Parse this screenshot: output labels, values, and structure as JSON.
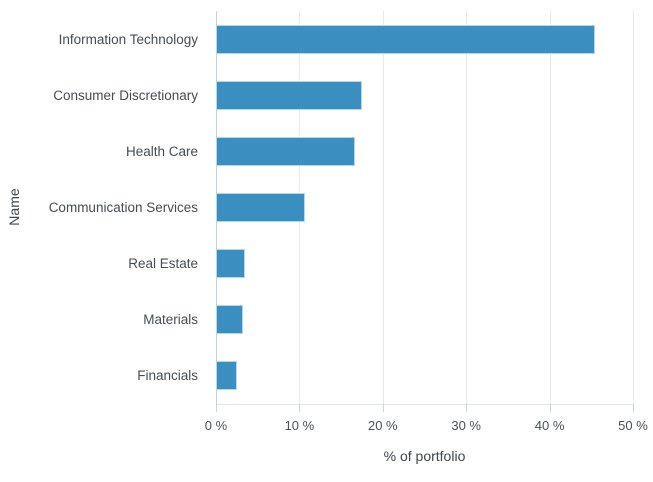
{
  "chart_data": {
    "type": "bar",
    "orientation": "horizontal",
    "categories": [
      "Information Technology",
      "Consumer Discretionary",
      "Health Care",
      "Communication Services",
      "Real Estate",
      "Materials",
      "Financials"
    ],
    "values": [
      45.5,
      17.5,
      16.7,
      10.7,
      3.5,
      3.2,
      2.5
    ],
    "title": "",
    "xlabel": "% of portfolio",
    "ylabel": "Name",
    "xlim": [
      0,
      50
    ],
    "x_ticks": [
      0,
      10,
      20,
      30,
      40,
      50
    ],
    "x_tick_labels": [
      "0 %",
      "10 %",
      "20 %",
      "30 %",
      "40 %",
      "50 %"
    ],
    "grid": "vertical-only",
    "legend": "none"
  },
  "colors": {
    "bar_fill": "#3a8fc0",
    "bar_border": "#b7d7e8",
    "gridline": "#e5eaed",
    "y_axis_line": "#c4d2db",
    "x_axis_line": "#e0e6ea",
    "tick": "#ccd5da",
    "axis_title_text": "#3f454b",
    "label_text": "#474c51",
    "background": "#ffffff"
  }
}
